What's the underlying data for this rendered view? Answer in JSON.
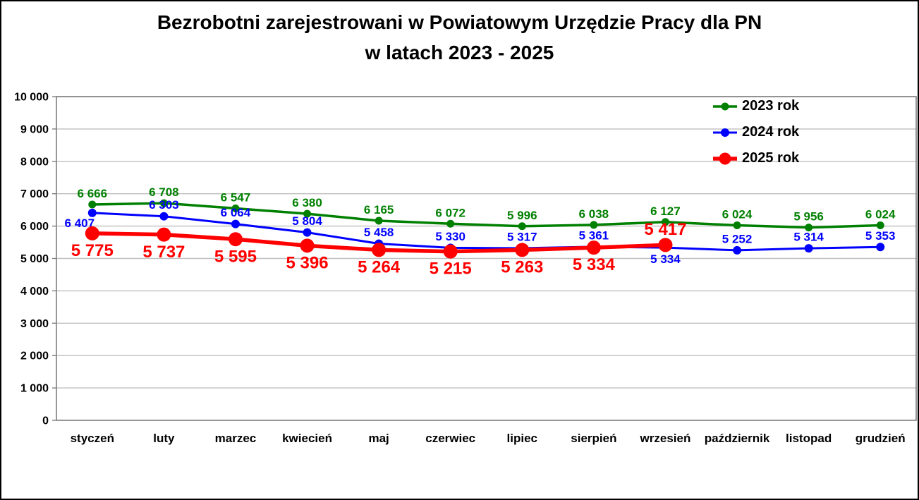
{
  "page": {
    "title_line1": "Bezrobotni zarejestrowani w Powiatowym Urzędzie Pracy dla PN",
    "title_line2": "w latach 2023 - 2025"
  },
  "chart_data": {
    "type": "line",
    "title": "Bezrobotni zarejestrowani w Powiatowym Urzędzie Pracy dla PN w latach 2023 - 2025",
    "categories": [
      "styczeń",
      "luty",
      "marzec",
      "kwiecień",
      "maj",
      "czerwiec",
      "lipiec",
      "sierpień",
      "wrzesień",
      "październik",
      "listopad",
      "grudzień"
    ],
    "series": [
      {
        "name": "2023 rok",
        "color": "#008000",
        "values": [
          6666,
          6708,
          6547,
          6380,
          6165,
          6072,
          5996,
          6038,
          6127,
          6024,
          5956,
          6024
        ],
        "marker_radius": 5.5,
        "line_width": 3.5,
        "label_font_size": 17,
        "label_positions": [
          "above",
          "above",
          "above",
          "above",
          "above",
          "above",
          "above",
          "above",
          "above",
          "above",
          "above",
          "above"
        ]
      },
      {
        "name": "2024 rok",
        "color": "#0000ff",
        "values": [
          6407,
          6303,
          6064,
          5804,
          5458,
          5330,
          5317,
          5361,
          5334,
          5252,
          5314,
          5353
        ],
        "marker_radius": 6,
        "line_width": 3,
        "label_font_size": 17,
        "label_positions": [
          "below-left",
          "above",
          "above",
          "above",
          "above",
          "above",
          "above",
          "above",
          "below",
          "above",
          "above",
          "above"
        ]
      },
      {
        "name": "2025 rok",
        "color": "#ff0000",
        "values": [
          5775,
          5737,
          5595,
          5396,
          5264,
          5215,
          5263,
          5334,
          5417
        ],
        "marker_radius": 10,
        "line_width": 5.5,
        "label_font_size": 24,
        "label_positions": [
          "below",
          "below",
          "below",
          "below",
          "below",
          "below",
          "below",
          "below",
          "above"
        ]
      }
    ],
    "ylim": [
      0,
      10000
    ],
    "y_tick_step": 1000,
    "y_tick_labels": [
      "0",
      "1 000",
      "2 000",
      "3 000",
      "4 000",
      "5 000",
      "6 000",
      "7 000",
      "8 000",
      "9 000",
      "10 000"
    ],
    "grid": true,
    "legend_position": "top-right-inside",
    "gridline_color": "#bfbfbf",
    "axis_color": "#7f7f7f",
    "text_color": "#000000"
  }
}
